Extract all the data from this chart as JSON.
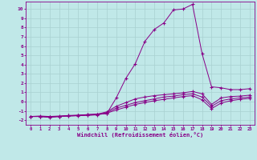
{
  "xlabel": "Windchill (Refroidissement éolien,°C)",
  "background_color": "#c0e8e8",
  "grid_color": "#a8d0d0",
  "line_color": "#880088",
  "xlim": [
    -0.5,
    23.5
  ],
  "ylim": [
    -2.5,
    10.8
  ],
  "yticks": [
    -2,
    -1,
    0,
    1,
    2,
    3,
    4,
    5,
    6,
    7,
    8,
    9,
    10
  ],
  "xticks": [
    0,
    1,
    2,
    3,
    4,
    5,
    6,
    7,
    8,
    9,
    10,
    11,
    12,
    13,
    14,
    15,
    16,
    17,
    18,
    19,
    20,
    21,
    22,
    23
  ],
  "series": [
    {
      "x": [
        0,
        1,
        2,
        3,
        4,
        5,
        6,
        7,
        8,
        9,
        10,
        11,
        12,
        13,
        14,
        15,
        16,
        17,
        18,
        19,
        20,
        21,
        22,
        23
      ],
      "y": [
        -1.6,
        -1.6,
        -1.7,
        -1.6,
        -1.5,
        -1.5,
        -1.4,
        -1.35,
        -1.3,
        0.4,
        2.5,
        4.1,
        6.5,
        7.8,
        8.5,
        9.9,
        10.0,
        10.5,
        5.2,
        1.6,
        1.5,
        1.3,
        1.3,
        1.4
      ],
      "marker": "+"
    },
    {
      "x": [
        0,
        1,
        2,
        3,
        4,
        5,
        6,
        7,
        8,
        9,
        10,
        11,
        12,
        13,
        14,
        15,
        16,
        17,
        18,
        19,
        20,
        21,
        22,
        23
      ],
      "y": [
        -1.6,
        -1.55,
        -1.6,
        -1.55,
        -1.5,
        -1.45,
        -1.4,
        -1.35,
        -1.1,
        -0.5,
        -0.1,
        0.3,
        0.5,
        0.65,
        0.75,
        0.85,
        0.95,
        1.1,
        0.85,
        -0.3,
        0.4,
        0.55,
        0.6,
        0.7
      ],
      "marker": "+"
    },
    {
      "x": [
        0,
        1,
        2,
        3,
        4,
        5,
        6,
        7,
        8,
        9,
        10,
        11,
        12,
        13,
        14,
        15,
        16,
        17,
        18,
        19,
        20,
        21,
        22,
        23
      ],
      "y": [
        -1.6,
        -1.6,
        -1.65,
        -1.6,
        -1.55,
        -1.5,
        -1.45,
        -1.4,
        -1.2,
        -0.7,
        -0.4,
        -0.1,
        0.1,
        0.3,
        0.5,
        0.6,
        0.75,
        0.85,
        0.5,
        -0.5,
        0.1,
        0.3,
        0.4,
        0.5
      ],
      "marker": "+"
    },
    {
      "x": [
        0,
        1,
        2,
        3,
        4,
        5,
        6,
        7,
        8,
        9,
        10,
        11,
        12,
        13,
        14,
        15,
        16,
        17,
        18,
        19,
        20,
        21,
        22,
        23
      ],
      "y": [
        -1.6,
        -1.6,
        -1.65,
        -1.6,
        -1.55,
        -1.52,
        -1.48,
        -1.43,
        -1.25,
        -0.9,
        -0.6,
        -0.3,
        -0.1,
        0.1,
        0.25,
        0.4,
        0.55,
        0.65,
        0.2,
        -0.75,
        -0.15,
        0.1,
        0.25,
        0.35
      ],
      "marker": "+"
    }
  ]
}
